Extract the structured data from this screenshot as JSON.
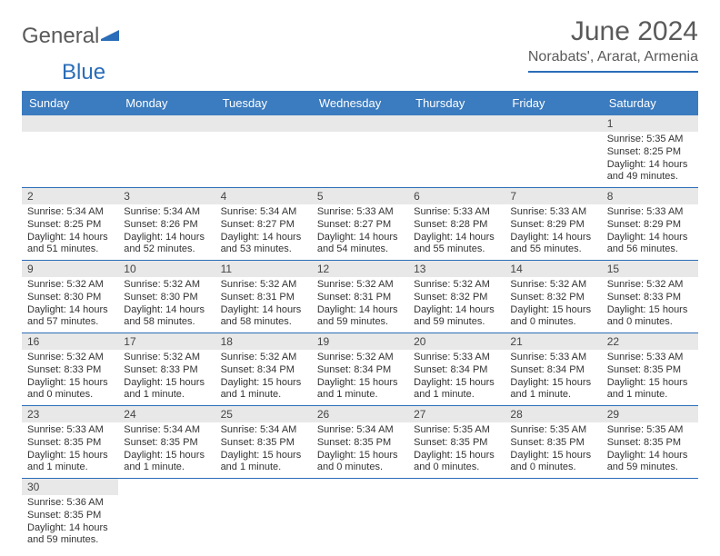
{
  "logo": {
    "text1": "General",
    "text2": "Blue"
  },
  "title": "June 2024",
  "location": "Norabats', Ararat, Armenia",
  "day_headers": [
    "Sunday",
    "Monday",
    "Tuesday",
    "Wednesday",
    "Thursday",
    "Friday",
    "Saturday"
  ],
  "colors": {
    "header_bg": "#3b7bbf",
    "accent": "#2a6db8",
    "bar_bg": "#e8e8e8",
    "text": "#333333",
    "muted": "#5a5a5a"
  },
  "first_weekday_index": 6,
  "num_days": 30,
  "days": [
    {
      "n": 1,
      "sunrise": "5:35 AM",
      "sunset": "8:25 PM",
      "daylight": "14 hours and 49 minutes."
    },
    {
      "n": 2,
      "sunrise": "5:34 AM",
      "sunset": "8:25 PM",
      "daylight": "14 hours and 51 minutes."
    },
    {
      "n": 3,
      "sunrise": "5:34 AM",
      "sunset": "8:26 PM",
      "daylight": "14 hours and 52 minutes."
    },
    {
      "n": 4,
      "sunrise": "5:34 AM",
      "sunset": "8:27 PM",
      "daylight": "14 hours and 53 minutes."
    },
    {
      "n": 5,
      "sunrise": "5:33 AM",
      "sunset": "8:27 PM",
      "daylight": "14 hours and 54 minutes."
    },
    {
      "n": 6,
      "sunrise": "5:33 AM",
      "sunset": "8:28 PM",
      "daylight": "14 hours and 55 minutes."
    },
    {
      "n": 7,
      "sunrise": "5:33 AM",
      "sunset": "8:29 PM",
      "daylight": "14 hours and 55 minutes."
    },
    {
      "n": 8,
      "sunrise": "5:33 AM",
      "sunset": "8:29 PM",
      "daylight": "14 hours and 56 minutes."
    },
    {
      "n": 9,
      "sunrise": "5:32 AM",
      "sunset": "8:30 PM",
      "daylight": "14 hours and 57 minutes."
    },
    {
      "n": 10,
      "sunrise": "5:32 AM",
      "sunset": "8:30 PM",
      "daylight": "14 hours and 58 minutes."
    },
    {
      "n": 11,
      "sunrise": "5:32 AM",
      "sunset": "8:31 PM",
      "daylight": "14 hours and 58 minutes."
    },
    {
      "n": 12,
      "sunrise": "5:32 AM",
      "sunset": "8:31 PM",
      "daylight": "14 hours and 59 minutes."
    },
    {
      "n": 13,
      "sunrise": "5:32 AM",
      "sunset": "8:32 PM",
      "daylight": "14 hours and 59 minutes."
    },
    {
      "n": 14,
      "sunrise": "5:32 AM",
      "sunset": "8:32 PM",
      "daylight": "15 hours and 0 minutes."
    },
    {
      "n": 15,
      "sunrise": "5:32 AM",
      "sunset": "8:33 PM",
      "daylight": "15 hours and 0 minutes."
    },
    {
      "n": 16,
      "sunrise": "5:32 AM",
      "sunset": "8:33 PM",
      "daylight": "15 hours and 0 minutes."
    },
    {
      "n": 17,
      "sunrise": "5:32 AM",
      "sunset": "8:33 PM",
      "daylight": "15 hours and 1 minute."
    },
    {
      "n": 18,
      "sunrise": "5:32 AM",
      "sunset": "8:34 PM",
      "daylight": "15 hours and 1 minute."
    },
    {
      "n": 19,
      "sunrise": "5:32 AM",
      "sunset": "8:34 PM",
      "daylight": "15 hours and 1 minute."
    },
    {
      "n": 20,
      "sunrise": "5:33 AM",
      "sunset": "8:34 PM",
      "daylight": "15 hours and 1 minute."
    },
    {
      "n": 21,
      "sunrise": "5:33 AM",
      "sunset": "8:34 PM",
      "daylight": "15 hours and 1 minute."
    },
    {
      "n": 22,
      "sunrise": "5:33 AM",
      "sunset": "8:35 PM",
      "daylight": "15 hours and 1 minute."
    },
    {
      "n": 23,
      "sunrise": "5:33 AM",
      "sunset": "8:35 PM",
      "daylight": "15 hours and 1 minute."
    },
    {
      "n": 24,
      "sunrise": "5:34 AM",
      "sunset": "8:35 PM",
      "daylight": "15 hours and 1 minute."
    },
    {
      "n": 25,
      "sunrise": "5:34 AM",
      "sunset": "8:35 PM",
      "daylight": "15 hours and 1 minute."
    },
    {
      "n": 26,
      "sunrise": "5:34 AM",
      "sunset": "8:35 PM",
      "daylight": "15 hours and 0 minutes."
    },
    {
      "n": 27,
      "sunrise": "5:35 AM",
      "sunset": "8:35 PM",
      "daylight": "15 hours and 0 minutes."
    },
    {
      "n": 28,
      "sunrise": "5:35 AM",
      "sunset": "8:35 PM",
      "daylight": "15 hours and 0 minutes."
    },
    {
      "n": 29,
      "sunrise": "5:35 AM",
      "sunset": "8:35 PM",
      "daylight": "14 hours and 59 minutes."
    },
    {
      "n": 30,
      "sunrise": "5:36 AM",
      "sunset": "8:35 PM",
      "daylight": "14 hours and 59 minutes."
    }
  ],
  "labels": {
    "sunrise": "Sunrise:",
    "sunset": "Sunset:",
    "daylight": "Daylight:"
  }
}
